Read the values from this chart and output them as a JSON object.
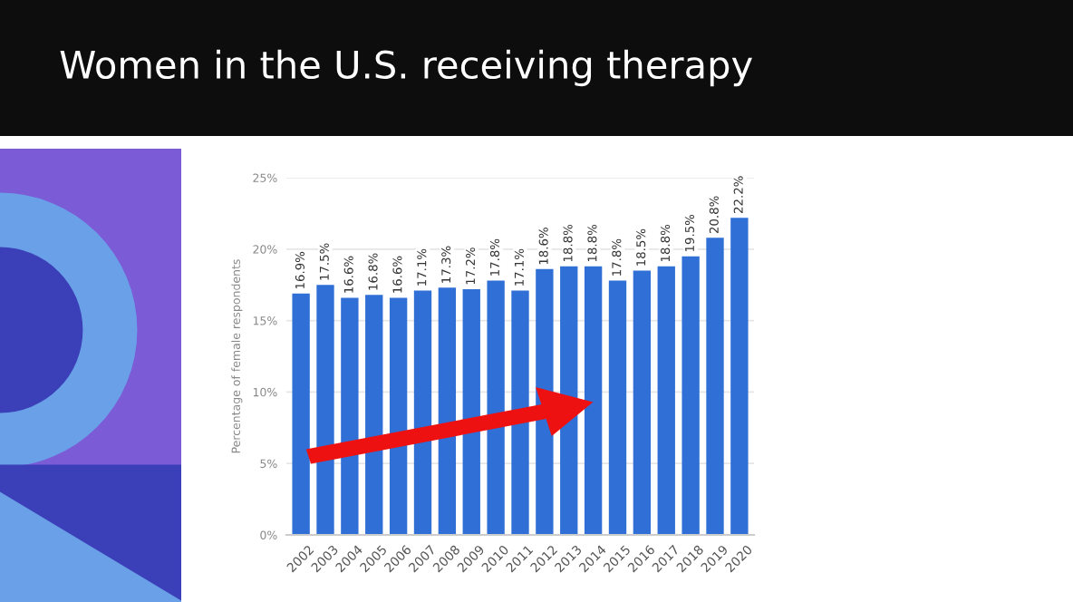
{
  "chart_data": {
    "type": "bar",
    "title": "Women in the U.S. receiving therapy",
    "ylabel": "Percentage of female respondents",
    "categories": [
      "2002",
      "2003",
      "2004",
      "2005",
      "2006",
      "2007",
      "2008",
      "2009",
      "2010",
      "2011",
      "2012",
      "2013",
      "2014",
      "2015",
      "2016",
      "2017",
      "2018",
      "2019",
      "2020"
    ],
    "values": [
      16.9,
      17.5,
      16.6,
      16.8,
      16.6,
      17.1,
      17.3,
      17.2,
      17.8,
      17.1,
      18.6,
      18.8,
      18.8,
      17.8,
      18.5,
      18.8,
      19.5,
      20.8,
      22.2
    ],
    "value_labels": [
      "16.9%",
      "17.5%",
      "16.6%",
      "16.8%",
      "16.6%",
      "17.1%",
      "17.3%",
      "17.2%",
      "17.8%",
      "17.1%",
      "18.6%",
      "18.8%",
      "18.8%",
      "17.8%",
      "18.5%",
      "18.8%",
      "19.5%",
      "20.8%",
      "22.2%"
    ],
    "color": "#2f6fd6",
    "ylim": [
      0,
      25
    ],
    "yticks": [
      {
        "value": 0,
        "label": "0%"
      },
      {
        "value": 5,
        "label": "5%"
      },
      {
        "value": 10,
        "label": "10%"
      },
      {
        "value": 15,
        "label": "15%"
      },
      {
        "value": 20,
        "label": "20%"
      },
      {
        "value": 25,
        "label": "25%"
      }
    ],
    "grid": "y"
  }
}
